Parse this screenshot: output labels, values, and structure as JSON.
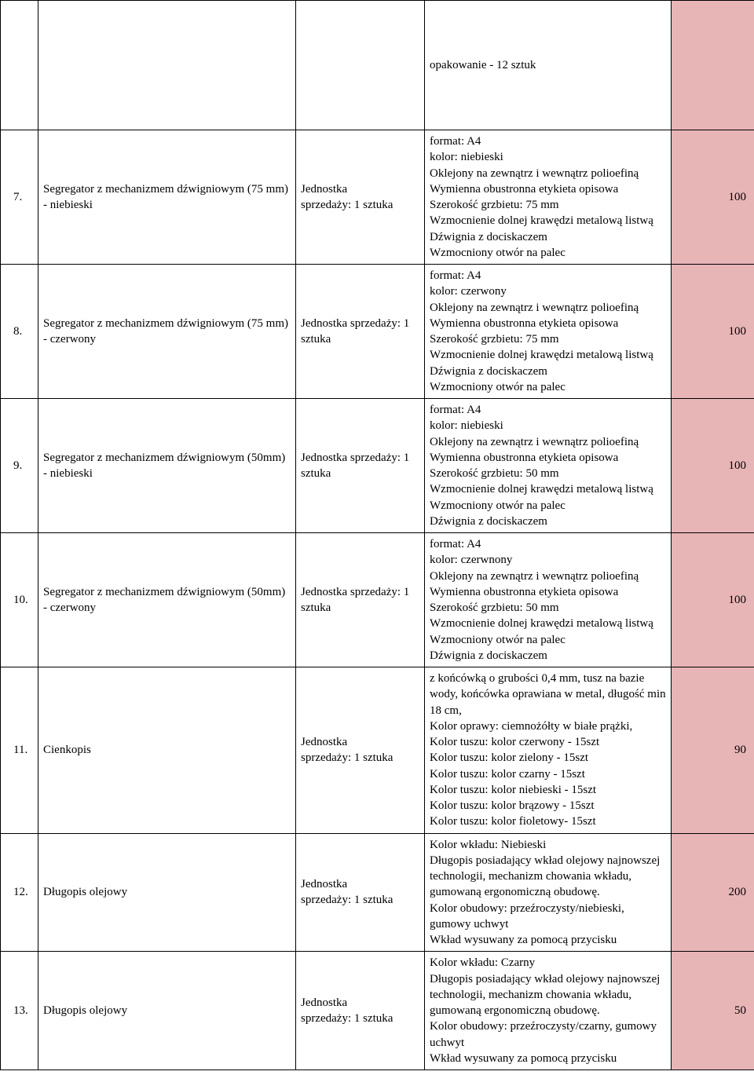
{
  "colors": {
    "qty_bg": "#e8b5b7",
    "border": "#000000",
    "page_bg": "#ffffff"
  },
  "font": {
    "family": "Times New Roman",
    "size": 15
  },
  "top_row": {
    "desc": "opakowanie - 12 sztuk",
    "qty": ""
  },
  "rows": [
    {
      "num": "7.",
      "name": "Segregator z mechanizmem dźwigniowym (75 mm) - niebieski",
      "unit": "Jednostka\nsprzedaży: 1 sztuka",
      "desc": "format: A4\nkolor: niebieski\nOklejony na zewnątrz i wewnątrz polioefiną\nWymienna obustronna etykieta opisowa\nSzerokość grzbietu: 75 mm\nWzmocnienie dolnej krawędzi metalową listwą\nDźwignia z dociskaczem\nWzmocniony otwór na palec",
      "qty": "100"
    },
    {
      "num": "8.",
      "name": "Segregator z mechanizmem dźwigniowym (75 mm) - czerwony",
      "unit": "Jednostka sprzedaży: 1 sztuka",
      "desc": "format: A4\nkolor: czerwony\nOklejony na zewnątrz i wewnątrz polioefiną\nWymienna obustronna etykieta opisowa\nSzerokość grzbietu: 75 mm\nWzmocnienie dolnej krawędzi metalową listwą\nDźwignia z dociskaczem\nWzmocniony otwór na palec",
      "qty": "100"
    },
    {
      "num": "9.",
      "name": "Segregator z mechanizmem dźwigniowym (50mm) - niebieski",
      "unit": "Jednostka sprzedaży: 1 sztuka",
      "desc": "format: A4\nkolor: niebieski\nOklejony na zewnątrz i wewnątrz polioefiną\nWymienna obustronna etykieta opisowa\nSzerokość grzbietu: 50 mm\nWzmocnienie dolnej krawędzi metalową listwą\nWzmocniony otwór na palec\nDźwignia z dociskaczem",
      "qty": "100"
    },
    {
      "num": "10.",
      "name": "Segregator z mechanizmem dźwigniowym (50mm) - czerwony",
      "unit": "Jednostka sprzedaży: 1 sztuka",
      "desc": "format: A4\nkolor: czerwnony\nOklejony na zewnątrz i wewnątrz polioefiną\nWymienna obustronna etykieta opisowa\nSzerokość grzbietu: 50 mm\nWzmocnienie dolnej krawędzi metalową listwą\nWzmocniony otwór na palec\nDźwignia z dociskaczem",
      "qty": "100"
    },
    {
      "num": "11.",
      "name": "Cienkopis",
      "unit": "Jednostka\nsprzedaży: 1 sztuka",
      "desc": "z końcówką o grubości 0,4 mm, tusz na bazie wody, końcówka oprawiana w metal, długość min 18 cm,\nKolor oprawy: ciemnożółty w białe prążki,\nKolor tuszu: kolor czerwony  - 15szt\nKolor tuszu: kolor zielony - 15szt\nKolor tuszu: kolor czarny - 15szt\nKolor tuszu: kolor niebieski - 15szt\nKolor tuszu: kolor brązowy - 15szt\nKolor tuszu: kolor fioletowy- 15szt",
      "qty": "90"
    },
    {
      "num": "12.",
      "name": "Długopis olejowy",
      "unit": "Jednostka\nsprzedaży: 1 sztuka",
      "desc": "Kolor wkładu: Niebieski\nDługopis posiadający wkład olejowy najnowszej technologii, mechanizm chowania wkładu, gumowaną ergonomiczną obudowę.\nKolor obudowy: przeźroczysty/niebieski, gumowy uchwyt\nWkład wysuwany za pomocą przycisku",
      "qty": "200"
    },
    {
      "num": "13.",
      "name": "Długopis olejowy",
      "unit": "Jednostka\nsprzedaży: 1 sztuka",
      "desc": "Kolor wkładu: Czarny\nDługopis posiadający wkład olejowy najnowszej technologii, mechanizm chowania wkładu, gumowaną ergonomiczną obudowę.\nKolor obudowy: przeźroczysty/czarny, gumowy uchwyt\nWkład wysuwany za pomocą przycisku",
      "qty": "50"
    }
  ]
}
